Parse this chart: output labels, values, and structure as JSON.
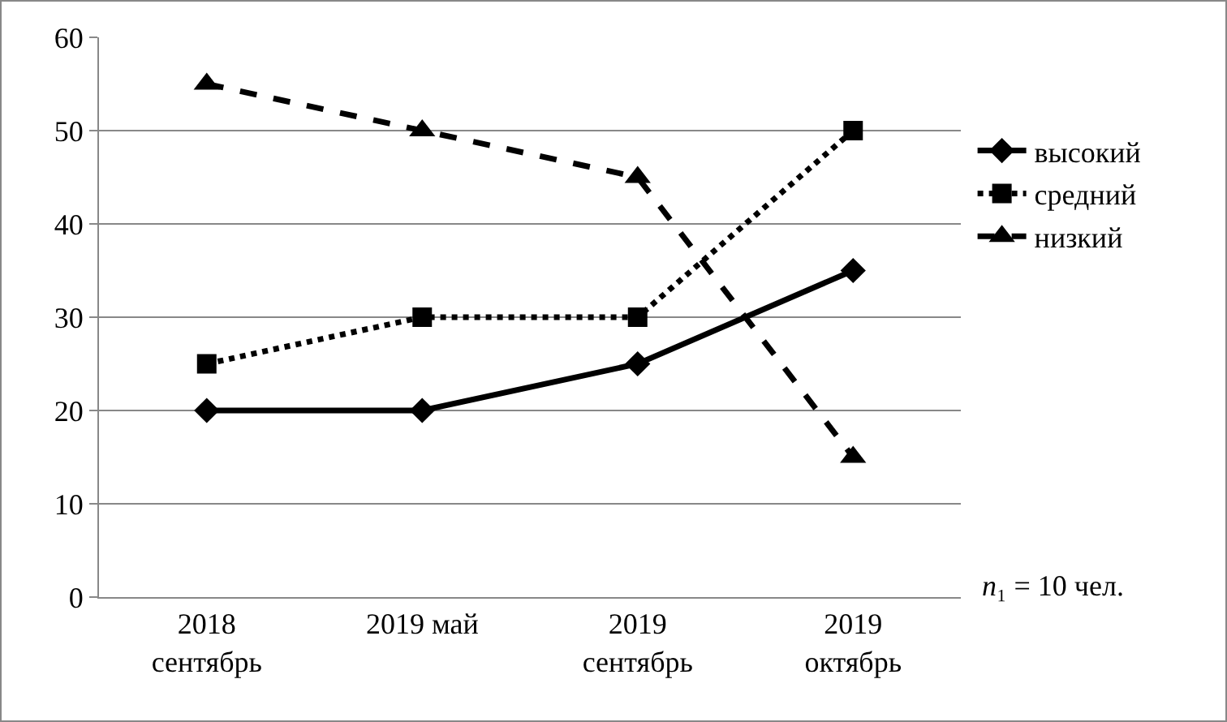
{
  "chart_data": {
    "type": "line",
    "categories": [
      "2018\nсентябрь",
      "2019 май",
      "2019\nсентябрь",
      "2019\nоктябрь"
    ],
    "series": [
      {
        "name": "высокий",
        "color": "#000000",
        "values": [
          20,
          20,
          25,
          35
        ],
        "marker": "diamond",
        "line_style": "solid"
      },
      {
        "name": "средний",
        "color": "#000000",
        "values": [
          25,
          30,
          30,
          50
        ],
        "marker": "square",
        "line_style": "dotted"
      },
      {
        "name": "низкий",
        "color": "#000000",
        "values": [
          55,
          50,
          45,
          15
        ],
        "marker": "triangle",
        "line_style": "dashed"
      }
    ],
    "ylim": [
      0,
      60
    ],
    "yticks": [
      0,
      10,
      20,
      30,
      40,
      50,
      60
    ],
    "grid": "y",
    "legend": "right",
    "annotations": [
      "n₁ = 10 чел."
    ]
  }
}
